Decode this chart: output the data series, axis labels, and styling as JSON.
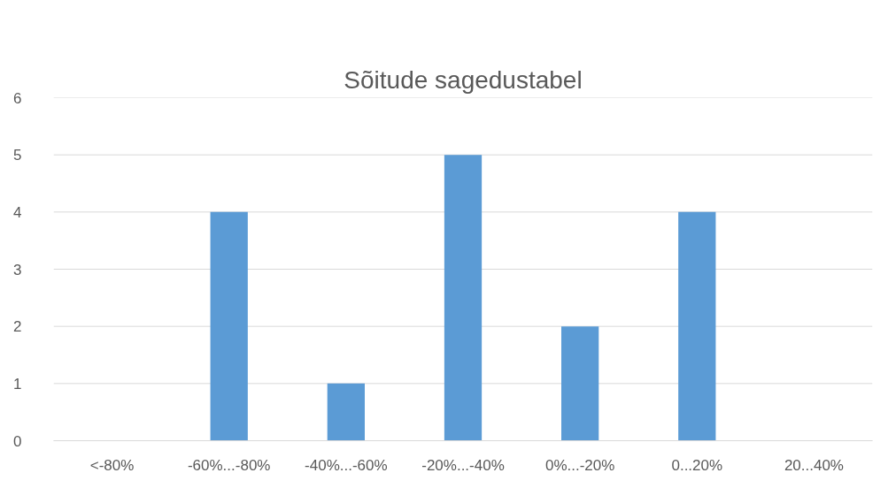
{
  "chart_data": {
    "type": "bar",
    "title": "Sõitude sagedustabel",
    "categories": [
      "<-80%",
      "-60%...-80%",
      "-40%...-60%",
      "-20%...-40%",
      "0%...-20%",
      "0...20%",
      "20...40%"
    ],
    "values": [
      0,
      4,
      1,
      5,
      2,
      4,
      0
    ],
    "color": "#5b9bd5",
    "ylim": [
      0,
      6
    ],
    "yticks": [
      0,
      1,
      2,
      3,
      4,
      5,
      6
    ],
    "grid": "y"
  }
}
